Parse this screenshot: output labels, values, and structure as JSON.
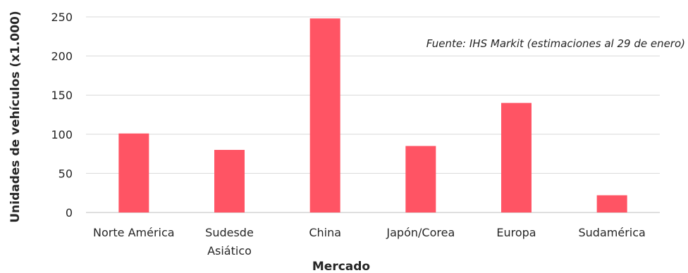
{
  "chart_data": {
    "type": "bar",
    "categories": [
      [
        "Norte América"
      ],
      [
        "Sudesde",
        "Asiático"
      ],
      [
        "China"
      ],
      [
        "Japón/Corea"
      ],
      [
        "Europa"
      ],
      [
        "Sudamérica"
      ]
    ],
    "values": [
      101,
      80,
      248,
      85,
      140,
      22
    ],
    "xlabel": "Mercado",
    "ylabel": "Unidades de vehículos (x1.000)",
    "ylim": [
      0,
      250
    ],
    "yticks": [
      0,
      50,
      100,
      150,
      200,
      250
    ],
    "annotation": "Fuente: IHS Markit (estimaciones al 29 de enero)",
    "bar_color": "#ff5464",
    "grid": true,
    "legend": "none"
  }
}
